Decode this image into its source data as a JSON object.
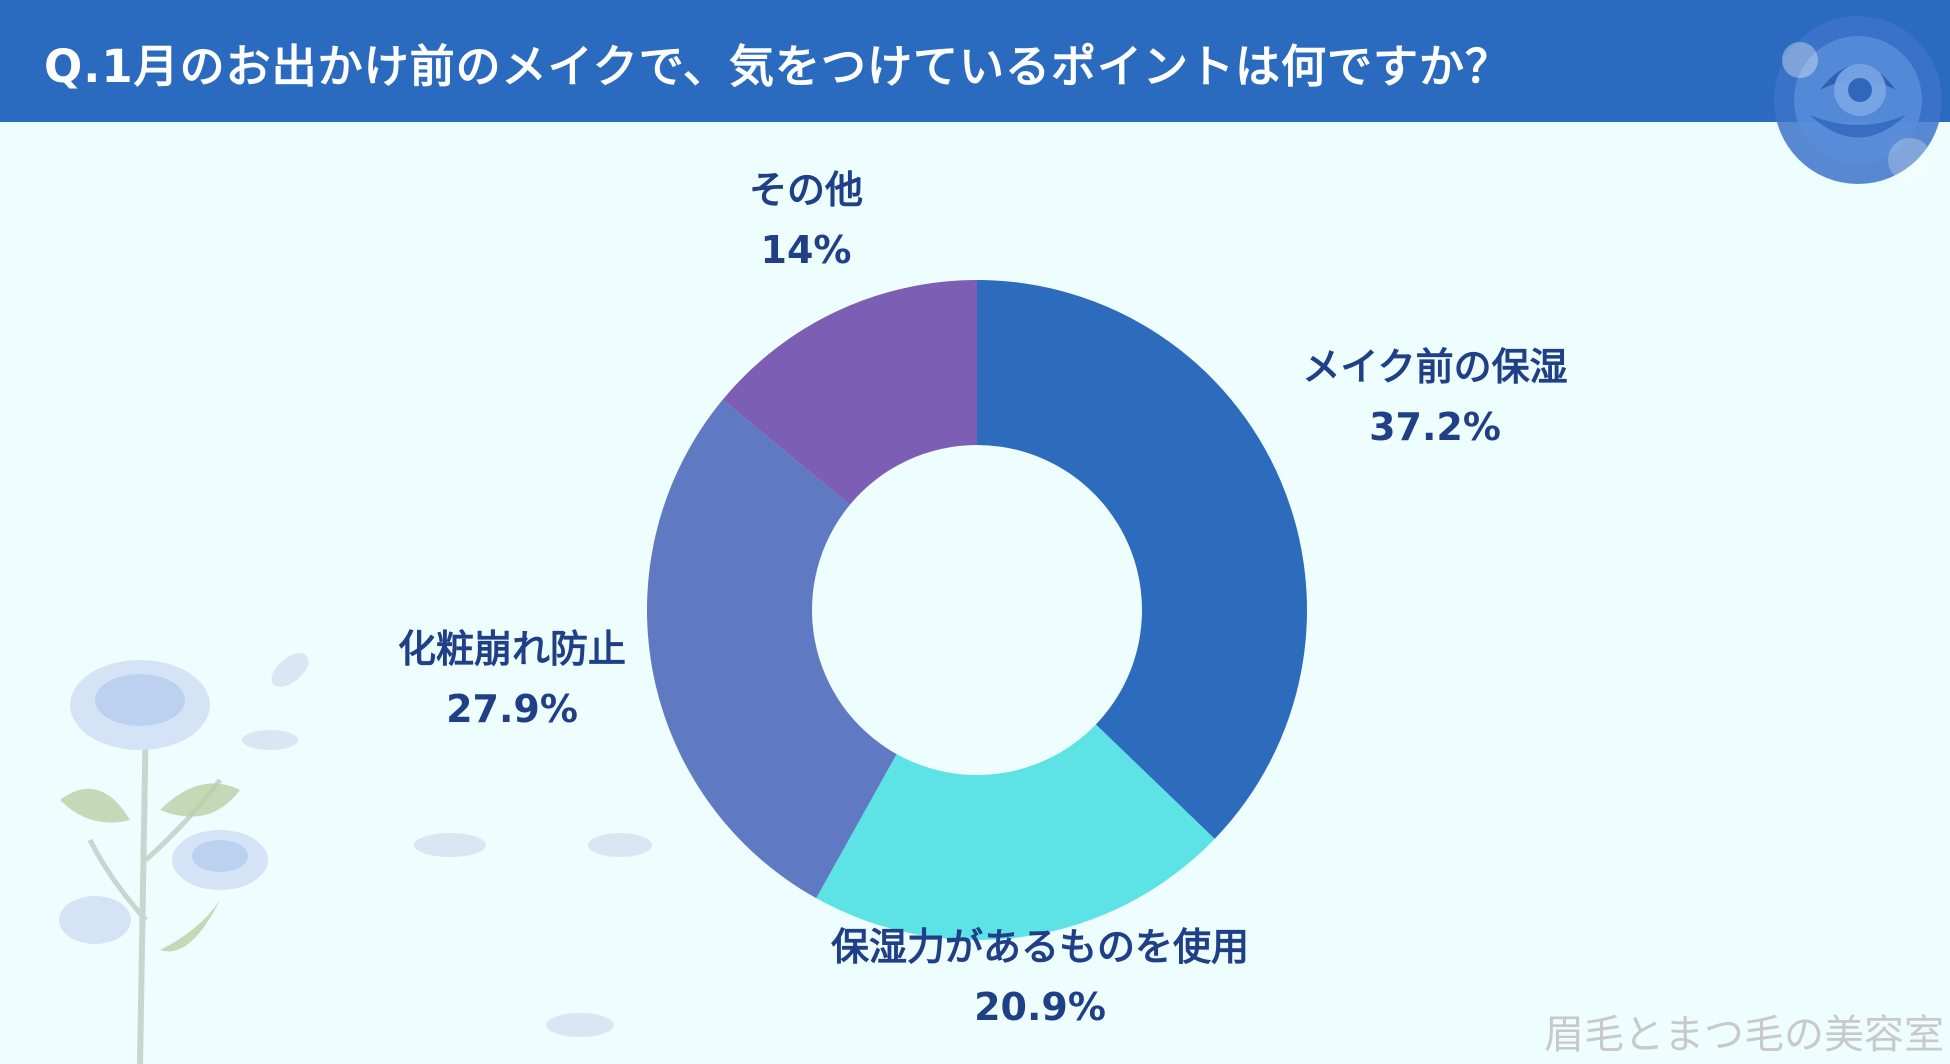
{
  "header": {
    "title": "Q.1月のお出かけ前のメイクで、気をつけているポイントは何ですか？"
  },
  "watermark": "眉毛とまつ毛の美容室",
  "colors": {
    "header_bg": "#2b6bbf",
    "background": "#eefdfd",
    "label": "#1f3f86"
  },
  "chart_data": {
    "type": "pie",
    "donut": true,
    "title": "Q.1月のお出かけ前のメイクで、気をつけているポイントは何ですか？",
    "slices": [
      {
        "label": "メイク前の保湿",
        "value": 37.2,
        "value_label": "37.2%",
        "color": "#2d6bbd"
      },
      {
        "label": "保湿力があるものを使用",
        "value": 20.9,
        "value_label": "20.9%",
        "color": "#5de2e6"
      },
      {
        "label": "化粧崩れ防止",
        "value": 27.9,
        "value_label": "27.9%",
        "color": "#5f79c3"
      },
      {
        "label": "その他",
        "value": 14,
        "value_label": "14%",
        "color": "#7d5eb5"
      }
    ]
  }
}
